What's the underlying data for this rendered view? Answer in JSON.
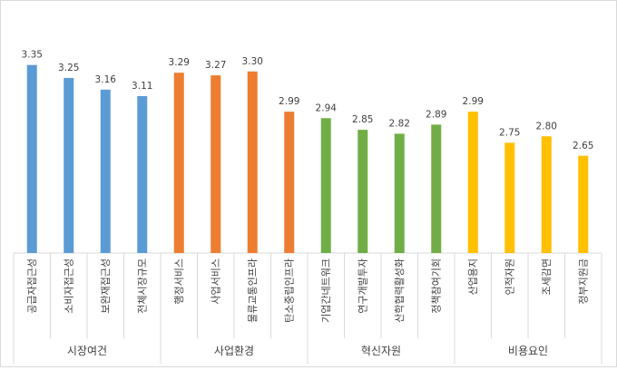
{
  "chart_data": {
    "type": "bar",
    "title": "",
    "xlabel": "",
    "ylabel": "",
    "ylim": [
      1.9,
      3.45
    ],
    "grid": false,
    "legend": "none",
    "groups": [
      {
        "name": "시장여건",
        "color": "#5b9bd5",
        "categories": [
          "공급자접근성",
          "소비자접근성",
          "보완재접근성",
          "전체시장규모"
        ],
        "values": [
          3.35,
          3.25,
          3.16,
          3.11
        ]
      },
      {
        "name": "사업환경",
        "color": "#ed7d31",
        "categories": [
          "행정서비스",
          "사업서비스",
          "물류교통인프라",
          "탄소중립인프라"
        ],
        "values": [
          3.29,
          3.27,
          3.3,
          2.99
        ]
      },
      {
        "name": "혁신자원",
        "color": "#70ad47",
        "categories": [
          "기업간네트워크",
          "연구개발투자",
          "산학협력활성화",
          "정책참여기회"
        ],
        "values": [
          2.94,
          2.85,
          2.82,
          2.89
        ]
      },
      {
        "name": "비용요인",
        "color": "#ffc000",
        "categories": [
          "산업용지",
          "인적자원",
          "조세감면",
          "정부지원금"
        ],
        "values": [
          2.99,
          2.75,
          2.8,
          2.65
        ]
      }
    ]
  }
}
